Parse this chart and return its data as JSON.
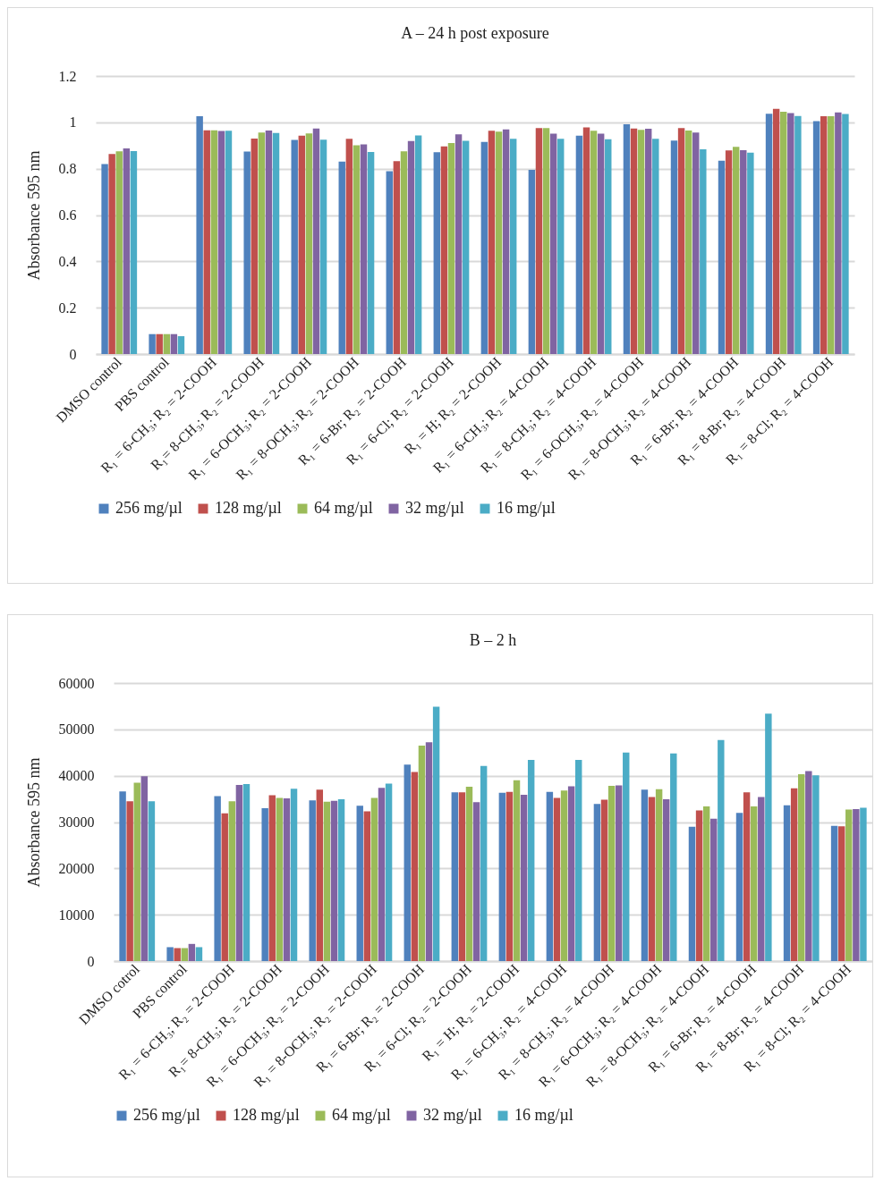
{
  "chart_data": [
    {
      "type": "bar",
      "title": "A – 24 h post exposure",
      "ylabel": "Absorbance 595 nm",
      "categories": [
        "DMSO control",
        "PBS control",
        "R₁ = 6-CH₃; R₂ = 2-COOH",
        "R₁= 8-CH₃; R₂ = 2-COOH",
        "R₁ = 6-OCH₃; R₂ = 2-COOH",
        "R₁ = 8-OCH₃; R₂ = 2-COOH",
        "R₁ = 6-Br; R₂ = 2-COOH",
        "R₁ = 6-Cl; R₂ = 2-COOH",
        "R₁ = H; R₂ = 2-COOH",
        "R₁ = 6-CH₃; R₂ = 4-COOH",
        "R₁ = 8-CH₃; R₂ = 4-COOH",
        "R₁ = 6-OCH₃; R₂ = 4-COOH",
        "R₁ = 8-OCH₃; R₂ = 4-COOH",
        "R₁ = 6-Br; R₂ = 4-COOH",
        "R₁ = 8-Br; R₂ = 4-COOH",
        "R₁ = 8-Cl; R₂ = 4-COOH"
      ],
      "series": [
        {
          "name": "256 mg/µl",
          "color": "#4f81bd",
          "values": [
            0.82,
            0.086,
            1.026,
            0.874,
            0.924,
            0.831,
            0.789,
            0.871,
            0.915,
            0.795,
            0.942,
            0.992,
            0.921,
            0.834,
            1.037,
            1.005
          ]
        },
        {
          "name": "128 mg/µl",
          "color": "#c0504d",
          "values": [
            0.863,
            0.086,
            0.966,
            0.93,
            0.942,
            0.929,
            0.832,
            0.896,
            0.964,
            0.975,
            0.978,
            0.973,
            0.975,
            0.879,
            1.058,
            1.026
          ]
        },
        {
          "name": "64 mg/µl",
          "color": "#9bbb59",
          "values": [
            0.875,
            0.086,
            0.966,
            0.956,
            0.952,
            0.901,
            0.875,
            0.911,
            0.96,
            0.975,
            0.964,
            0.968,
            0.965,
            0.894,
            1.046,
            1.026
          ]
        },
        {
          "name": "32 mg/µl",
          "color": "#8064a2",
          "values": [
            0.887,
            0.086,
            0.963,
            0.965,
            0.973,
            0.905,
            0.919,
            0.948,
            0.969,
            0.951,
            0.951,
            0.972,
            0.956,
            0.88,
            1.04,
            1.043
          ]
        },
        {
          "name": "16 mg/µl",
          "color": "#4bacc6",
          "values": [
            0.876,
            0.077,
            0.964,
            0.954,
            0.925,
            0.872,
            0.943,
            0.92,
            0.929,
            0.929,
            0.927,
            0.929,
            0.884,
            0.869,
            1.027,
            1.036
          ]
        }
      ],
      "ylim": [
        0,
        1.2
      ],
      "yticks": [
        0,
        0.2,
        0.4,
        0.6,
        0.8,
        1,
        1.2
      ],
      "grid": "y",
      "legend": "bottom"
    },
    {
      "type": "bar",
      "title": "B – 2 h",
      "ylabel": "Absorbance 595 nm",
      "categories": [
        "DMSO cotrol",
        "PBS control",
        "R₁ = 6-CH₃; R₂ = 2-COOH",
        "R₁= 8-CH₃; R₂ = 2-COOH",
        "R₁ = 6-OCH₃; R₂ = 2-COOH",
        "R₁ = 8-OCH₃; R₂ = 2-COOH",
        "R₁ = 6-Br; R₂ = 2-COOH",
        "R₁ = 6-Cl; R₂ = 2-COOH",
        "R₁ = H; R₂ = 2-COOH",
        "R₁ = 6-CH₃; R₂ = 4-COOH",
        "R₁ = 8-CH₃; R₂ = 4-COOH",
        "R₁ = 6-OCH₃; R₂ = 4-COOH",
        "R₁ = 8-OCH₃; R₂ = 4-COOH",
        "R₁ = 6-Br; R₂ = 4-COOH",
        "R₁ = 8-Br; R₂ = 4-COOH",
        "R₁ = 8-Cl; R₂ = 4-COOH"
      ],
      "series": [
        {
          "name": "256 mg/µl",
          "color": "#4f81bd",
          "values": [
            36600,
            3000,
            35600,
            33000,
            34700,
            33500,
            42400,
            36400,
            36300,
            36500,
            33900,
            37000,
            29000,
            32000,
            33600,
            29200
          ]
        },
        {
          "name": "128 mg/µl",
          "color": "#c0504d",
          "values": [
            34500,
            2800,
            31900,
            35800,
            37000,
            32300,
            40800,
            36400,
            36500,
            35200,
            34800,
            35400,
            32500,
            36400,
            37300,
            29100
          ]
        },
        {
          "name": "64 mg/µl",
          "color": "#9bbb59",
          "values": [
            38500,
            2800,
            34500,
            35200,
            34400,
            35200,
            46500,
            37600,
            39000,
            36800,
            37800,
            37100,
            33400,
            33400,
            40300,
            32700
          ]
        },
        {
          "name": "32 mg/µl",
          "color": "#8064a2",
          "values": [
            39900,
            3700,
            38000,
            35100,
            34600,
            37400,
            47200,
            34300,
            35900,
            37700,
            37900,
            34900,
            30700,
            35400,
            41000,
            32800
          ]
        },
        {
          "name": "16 mg/µl",
          "color": "#4bacc6",
          "values": [
            34500,
            3000,
            38200,
            37200,
            34900,
            38300,
            54900,
            42100,
            43400,
            43400,
            45000,
            44800,
            47700,
            53400,
            40100,
            33100
          ]
        }
      ],
      "ylim": [
        0,
        60000
      ],
      "yticks": [
        0,
        10000,
        20000,
        30000,
        40000,
        50000,
        60000
      ],
      "grid": "y",
      "legend": "bottom"
    }
  ]
}
